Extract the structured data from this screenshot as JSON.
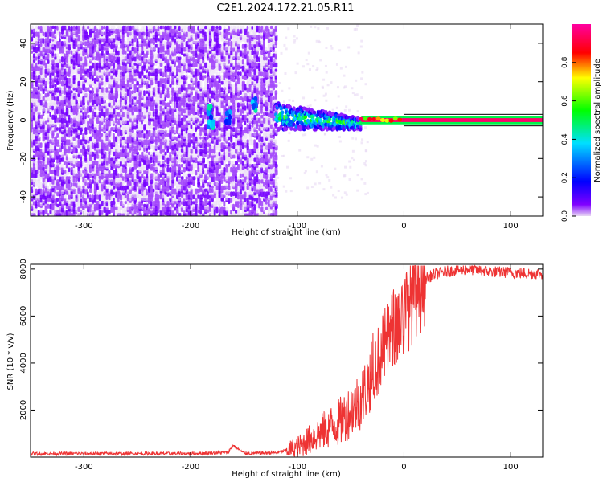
{
  "title": "C2E1.2024.172.21.05.R11",
  "chart_data": [
    {
      "type": "heatmap",
      "xlabel": "Height of straight line (km)",
      "ylabel": "Frequency (Hz)",
      "xlim": [
        -350,
        130
      ],
      "ylim": [
        -50,
        50
      ],
      "xticks": [
        -300,
        -200,
        -100,
        0,
        100
      ],
      "yticks": [
        -40,
        -20,
        0,
        20,
        40
      ],
      "colorbar": {
        "label": "Normalized spectral amplitude",
        "range": [
          0,
          1
        ],
        "ticks": [
          0.0,
          0.2,
          0.4,
          0.6,
          0.8
        ],
        "colors": [
          "#e0c8f0",
          "#8000ff",
          "#0000ff",
          "#00ffff",
          "#00ff00",
          "#ffff00",
          "#ff0000",
          "#ff0080"
        ]
      },
      "regions": [
        {
          "x": [
            -350,
            -120
          ],
          "freq_range": [
            -50,
            50
          ],
          "amplitude": 0.05
        },
        {
          "x": [
            -120,
            -40
          ],
          "freq_range": [
            -8,
            8
          ],
          "amplitude": 0.5
        },
        {
          "x": [
            -40,
            130
          ],
          "freq_range": [
            -2,
            2
          ],
          "amplitude": 0.95
        }
      ]
    },
    {
      "type": "line",
      "xlabel": "Height of straight line (km)",
      "ylabel": "SNR (10 * v/v)",
      "xlim": [
        -350,
        130
      ],
      "ylim": [
        0,
        8200
      ],
      "xticks": [
        -300,
        -200,
        -100,
        0,
        100
      ],
      "yticks": [
        2000,
        4000,
        6000,
        8000
      ],
      "color": "#ee3333",
      "series": [
        {
          "x": [
            -350,
            -200,
            -165,
            -160,
            -150,
            -120,
            -100,
            -80,
            -60,
            -40,
            -20,
            -10,
            0,
            10,
            20,
            30,
            40,
            60,
            80,
            100,
            130
          ],
          "y": [
            150,
            150,
            200,
            500,
            160,
            180,
            400,
            1000,
            1500,
            2500,
            4500,
            5500,
            6000,
            7000,
            7600,
            7800,
            7900,
            8000,
            7900,
            7850,
            7800
          ]
        }
      ]
    }
  ]
}
